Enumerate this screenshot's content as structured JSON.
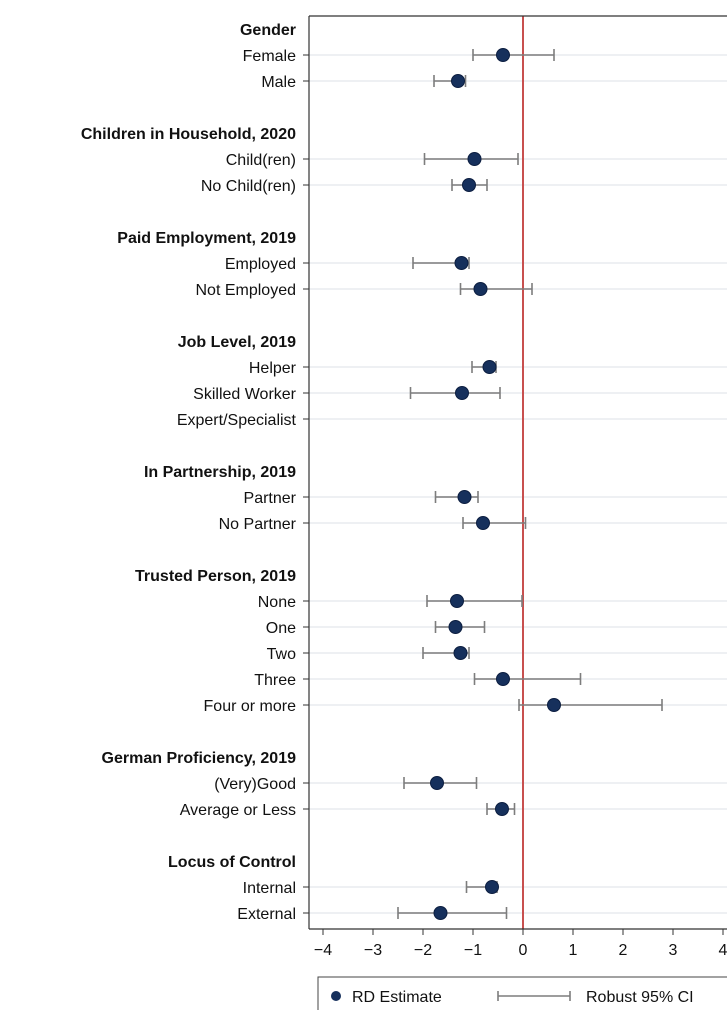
{
  "chart_data": {
    "type": "scatter",
    "subtype": "coefficient-plot",
    "title": "",
    "xlabel": "",
    "ylabel": "",
    "xlim": [
      -4,
      4
    ],
    "xticks": [
      -4,
      -3,
      -2,
      -1,
      0,
      1,
      2,
      3,
      4
    ],
    "xtick_labels": [
      "−4",
      "−3",
      "−2",
      "−1",
      "0",
      "1",
      "2",
      "3",
      "4"
    ],
    "reference_line": {
      "x": 0,
      "color": "#c8504f"
    },
    "grid": "horizontal",
    "groups": [
      {
        "heading": "Gender",
        "rows": [
          {
            "label": "Female",
            "estimate": -0.4,
            "ci_low": -1.0,
            "ci_high": 0.62
          },
          {
            "label": "Male",
            "estimate": -1.3,
            "ci_low": -1.78,
            "ci_high": -1.15
          }
        ]
      },
      {
        "heading": "Children in Household, 2020",
        "rows": [
          {
            "label": "Child(ren)",
            "estimate": -0.97,
            "ci_low": -1.97,
            "ci_high": -0.1
          },
          {
            "label": "No Child(ren)",
            "estimate": -1.08,
            "ci_low": -1.42,
            "ci_high": -0.72
          }
        ]
      },
      {
        "heading": "Paid Employment, 2019",
        "rows": [
          {
            "label": "Employed",
            "estimate": -1.23,
            "ci_low": -2.2,
            "ci_high": -1.08
          },
          {
            "label": "Not Employed",
            "estimate": -0.85,
            "ci_low": -1.25,
            "ci_high": 0.18
          }
        ]
      },
      {
        "heading": "Job Level, 2019",
        "rows": [
          {
            "label": "Helper",
            "estimate": -0.67,
            "ci_low": -1.02,
            "ci_high": -0.54
          },
          {
            "label": "Skilled Worker",
            "estimate": -1.22,
            "ci_low": -2.25,
            "ci_high": -0.46
          },
          {
            "label": "Expert/Specialist"
          }
        ]
      },
      {
        "heading": "In Partnership, 2019",
        "rows": [
          {
            "label": "Partner",
            "estimate": -1.17,
            "ci_low": -1.75,
            "ci_high": -0.9
          },
          {
            "label": "No Partner",
            "estimate": -0.8,
            "ci_low": -1.2,
            "ci_high": 0.05
          }
        ]
      },
      {
        "heading": "Trusted Person, 2019",
        "rows": [
          {
            "label": "None",
            "estimate": -1.32,
            "ci_low": -1.92,
            "ci_high": -0.02
          },
          {
            "label": "One",
            "estimate": -1.35,
            "ci_low": -1.75,
            "ci_high": -0.77
          },
          {
            "label": "Two",
            "estimate": -1.25,
            "ci_low": -2.0,
            "ci_high": -1.08
          },
          {
            "label": "Three",
            "estimate": -0.4,
            "ci_low": -0.97,
            "ci_high": 1.15
          },
          {
            "label": "Four or more",
            "estimate": 0.62,
            "ci_low": -0.08,
            "ci_high": 2.78
          }
        ]
      },
      {
        "heading": "German Proficiency, 2019",
        "rows": [
          {
            "label": "(Very)Good",
            "estimate": -1.72,
            "ci_low": -2.38,
            "ci_high": -0.93
          },
          {
            "label": "Average or Less",
            "estimate": -0.42,
            "ci_low": -0.72,
            "ci_high": -0.17
          }
        ]
      },
      {
        "heading": "Locus of Control",
        "rows": [
          {
            "label": "Internal",
            "estimate": -0.62,
            "ci_low": -1.13,
            "ci_high": -0.52
          },
          {
            "label": "External",
            "estimate": -1.65,
            "ci_low": -2.5,
            "ci_high": -0.33
          }
        ]
      }
    ],
    "legend": {
      "placement": "bottom",
      "entries": [
        {
          "label": "RD Estimate",
          "marker": "circle"
        },
        {
          "label": "Robust 95% CI",
          "marker": "capped-line"
        }
      ]
    },
    "colors": {
      "point": "#16305c",
      "ci": "#7d7d7d",
      "grid": "#e8ecef",
      "axis": "#333333",
      "reference": "#c8504f"
    }
  }
}
